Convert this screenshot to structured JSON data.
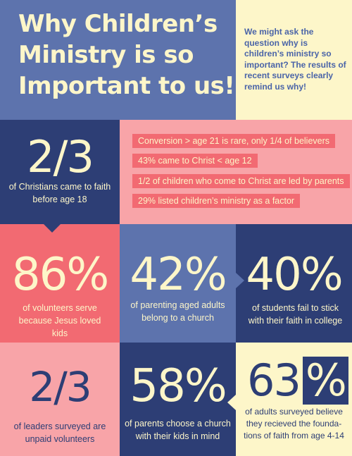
{
  "header": {
    "title_lines": [
      "Why Children’s",
      "Ministry is so",
      "Important to us!"
    ],
    "intro": "We might ask the question why is children’s ministry so important?  The results of  recent surveys clearly remind us why!"
  },
  "row1": {
    "stat": {
      "value": "2/3",
      "caption": "of Christians came to faith before age 18"
    },
    "facts": [
      "Conversion > age 21 is rare, only 1/4 of believers",
      "43% came to Christ < age 12",
      "1/2 of children who come to Christ are led by parents",
      "29% listed children’s ministry as a factor"
    ]
  },
  "row2": [
    {
      "value": "86%",
      "caption": "of volunteers serve because Jesus loved kids"
    },
    {
      "value": "42%",
      "caption": "of parenting aged adults belong to a church"
    },
    {
      "value": "40%",
      "caption": "of  students fail to stick with their faith in college"
    }
  ],
  "row3": [
    {
      "value": "2/3",
      "caption": "of leaders surveyed are unpaid volunteers"
    },
    {
      "value": "58%",
      "caption": "of parents choose a church with their kids in mind"
    },
    {
      "value_digits": "63",
      "value_symbol": "%",
      "caption": "of adults surveyed believe they recieved the founda-tions of faith from age 4-14"
    }
  ],
  "colors": {
    "navy": "#2d3e75",
    "slate_blue": "#5d73ad",
    "coral": "#f26a72",
    "pink": "#f8a4a8",
    "cream": "#fdf6c9"
  }
}
